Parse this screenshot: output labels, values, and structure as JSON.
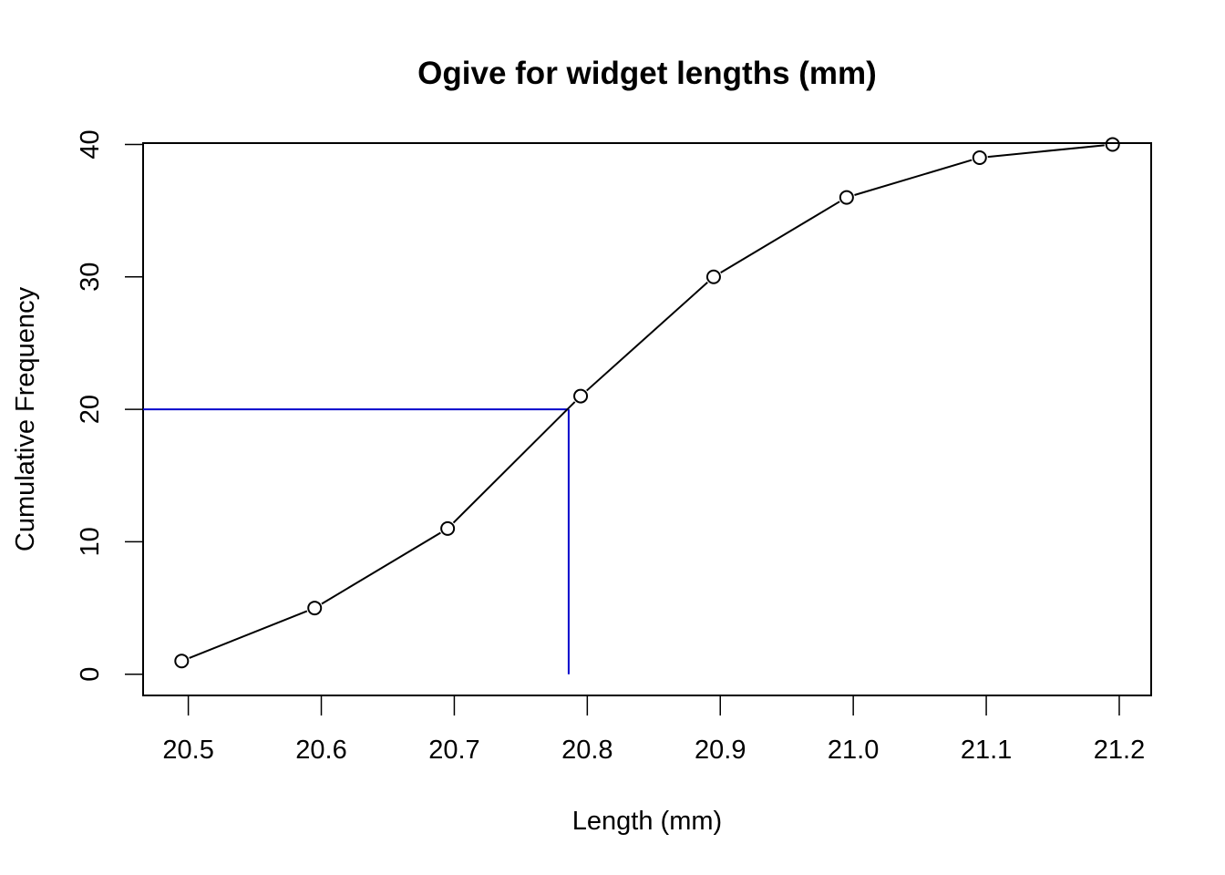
{
  "chart_data": {
    "type": "line",
    "title": "Ogive for widget lengths (mm)",
    "xlabel": "Length (mm)",
    "ylabel": "Cumulative Frequency",
    "xlim": [
      20.466,
      21.224
    ],
    "ylim": [
      -1.6,
      40.1
    ],
    "x_ticks": [
      20.5,
      20.6,
      20.7,
      20.8,
      20.9,
      21.0,
      21.1,
      21.2
    ],
    "x_tick_labels": [
      "20.5",
      "20.6",
      "20.7",
      "20.8",
      "20.9",
      "21.0",
      "21.1",
      "21.2"
    ],
    "y_ticks": [
      0,
      10,
      20,
      30,
      40
    ],
    "y_tick_labels": [
      "0",
      "10",
      "20",
      "30",
      "40"
    ],
    "series": [
      {
        "x": [
          20.495,
          20.595,
          20.695,
          20.795,
          20.895,
          20.995,
          21.095,
          21.195
        ],
        "y": [
          1,
          5,
          11,
          21,
          30,
          36,
          39,
          40
        ],
        "color": "#000000",
        "marker": "open-circle"
      }
    ],
    "median_guide": {
      "y": 20,
      "x": 20.786,
      "color": "#0000cc"
    },
    "grid": false,
    "legend": "none"
  }
}
